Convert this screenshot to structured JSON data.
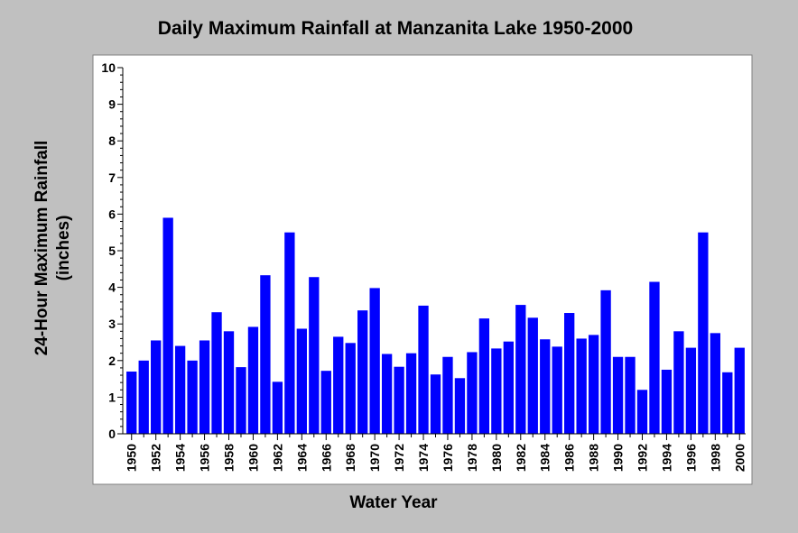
{
  "chart_data": {
    "type": "bar",
    "title": "Daily Maximum Rainfall at Manzanita Lake 1950-2000",
    "xlabel": "Water Year",
    "ylabel_lines": [
      "24-Hour Maximum Rainfall",
      "(inches)"
    ],
    "ylim": [
      0,
      10
    ],
    "yticks": [
      0,
      1,
      2,
      3,
      4,
      5,
      6,
      7,
      8,
      9,
      10
    ],
    "grid": false,
    "bar_color": "#0000ff",
    "categories": [
      "1950",
      "1951",
      "1952",
      "1953",
      "1954",
      "1955",
      "1956",
      "1957",
      "1958",
      "1959",
      "1960",
      "1961",
      "1962",
      "1963",
      "1964",
      "1965",
      "1966",
      "1967",
      "1968",
      "1969",
      "1970",
      "1971",
      "1972",
      "1973",
      "1974",
      "1975",
      "1976",
      "1977",
      "1978",
      "1979",
      "1980",
      "1981",
      "1982",
      "1983",
      "1984",
      "1985",
      "1986",
      "1987",
      "1988",
      "1989",
      "1990",
      "1991",
      "1992",
      "1993",
      "1994",
      "1995",
      "1996",
      "1997",
      "1998",
      "1999",
      "2000"
    ],
    "x_tick_labels": [
      "1950",
      "1952",
      "1954",
      "1956",
      "1958",
      "1960",
      "1962",
      "1964",
      "1966",
      "1968",
      "1970",
      "1972",
      "1974",
      "1976",
      "1978",
      "1980",
      "1982",
      "1984",
      "1986",
      "1988",
      "1990",
      "1992",
      "1994",
      "1996",
      "1998",
      "2000"
    ],
    "values": [
      1.7,
      2.0,
      2.55,
      5.9,
      2.4,
      2.0,
      2.55,
      3.32,
      2.8,
      1.82,
      2.92,
      4.33,
      1.42,
      5.5,
      2.87,
      4.28,
      1.72,
      2.65,
      2.48,
      3.37,
      3.98,
      2.18,
      1.83,
      2.2,
      3.5,
      1.62,
      2.1,
      1.52,
      2.23,
      3.15,
      2.33,
      2.52,
      3.52,
      3.17,
      2.58,
      2.38,
      3.3,
      2.6,
      2.7,
      3.92,
      2.1,
      2.1,
      1.2,
      4.15,
      1.75,
      2.8,
      2.35,
      5.5,
      2.75,
      1.68,
      2.35
    ]
  }
}
